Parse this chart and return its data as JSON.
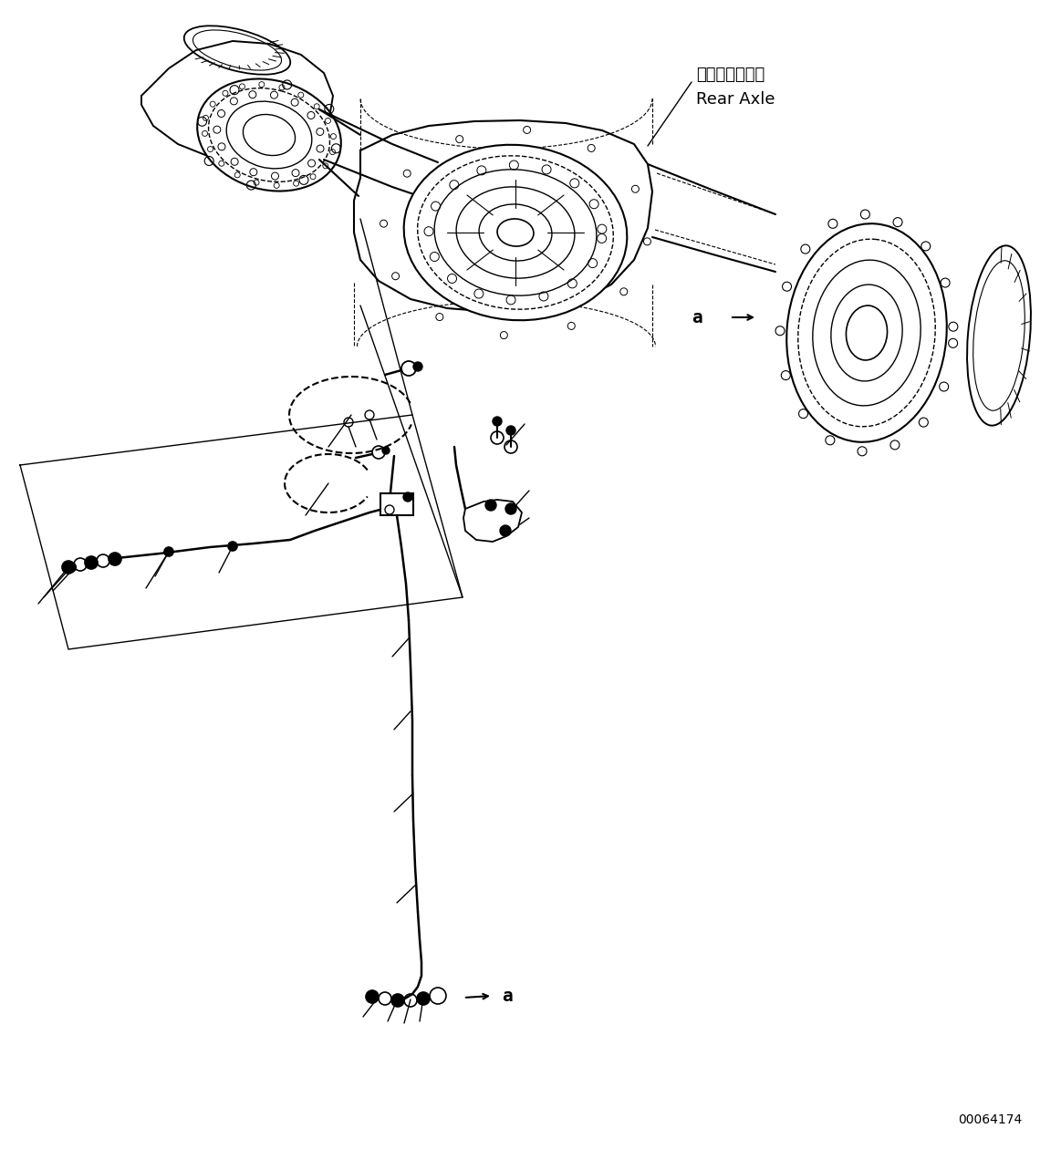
{
  "bg": "#ffffff",
  "lc": "#000000",
  "figsize": [
    11.63,
    12.6
  ],
  "dpi": 100,
  "jp_label": "リヤーアクスル",
  "en_label": "Rear Axle",
  "part_no": "00064174"
}
